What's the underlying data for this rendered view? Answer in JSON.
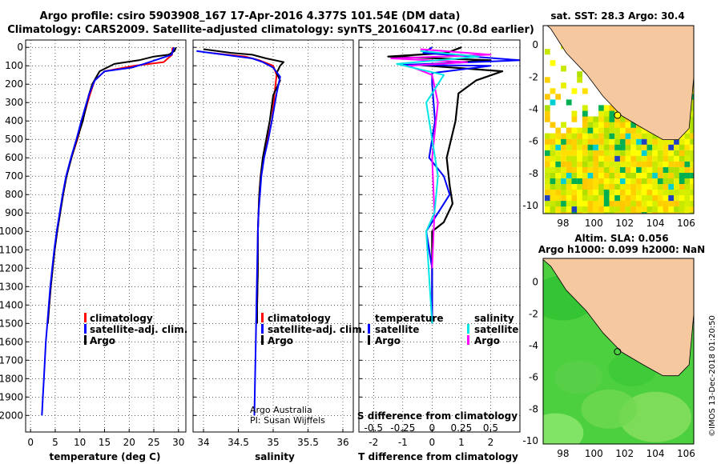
{
  "header": {
    "line1": "Argo profile: csiro 5903908_167 17-Apr-2016 4.377S 101.54E (DM data)",
    "line2": "Climatology: CARS2009. Satellite-adjusted climatology: synTS_20160417.nc (0.8d earlier)"
  },
  "colors": {
    "climatology": "#ff0000",
    "satellite": "#0000ff",
    "argo": "#000000",
    "sal_satellite": "#00e5e5",
    "sal_argo": "#ff00ff",
    "land": "#f5c8a0"
  },
  "chart_data": [
    {
      "type": "line",
      "name": "temperature",
      "xlabel": "temperature (deg C)",
      "ylabel": "",
      "xlim": [
        -1,
        31.5
      ],
      "ylim": [
        2090,
        -40
      ],
      "xticks": [
        "0",
        "5",
        "10",
        "15",
        "20",
        "25",
        "30"
      ],
      "yticks": [
        "0",
        "100",
        "200",
        "300",
        "400",
        "500",
        "600",
        "700",
        "800",
        "900",
        "1000",
        "1100",
        "1200",
        "1300",
        "1400",
        "1500",
        "1600",
        "1700",
        "1800",
        "1900",
        "2000"
      ],
      "legend": [
        "climatology",
        "satellite-adj. clim.",
        "Argo"
      ],
      "series": [
        {
          "name": "climatology",
          "points": [
            [
              28.8,
              0
            ],
            [
              28.7,
              40
            ],
            [
              27,
              80
            ],
            [
              21,
              100
            ],
            [
              15,
              130
            ],
            [
              13,
              180
            ],
            [
              12,
              260
            ],
            [
              10.5,
              400
            ],
            [
              9.5,
              500
            ],
            [
              8.3,
              600
            ],
            [
              7.3,
              700
            ],
            [
              6.6,
              800
            ],
            [
              6,
              900
            ],
            [
              5.4,
              1000
            ],
            [
              4.9,
              1100
            ],
            [
              4.5,
              1200
            ],
            [
              4.1,
              1300
            ],
            [
              3.8,
              1400
            ],
            [
              3.5,
              1500
            ]
          ]
        },
        {
          "name": "satellite-adj. clim.",
          "points": [
            [
              29.1,
              0
            ],
            [
              28.6,
              40
            ],
            [
              23,
              90
            ],
            [
              20.5,
              110
            ],
            [
              15,
              130
            ],
            [
              13,
              180
            ],
            [
              11.8,
              260
            ],
            [
              10.3,
              400
            ],
            [
              9.3,
              500
            ],
            [
              8.2,
              600
            ],
            [
              7.2,
              700
            ],
            [
              6.5,
              800
            ],
            [
              5.9,
              900
            ],
            [
              5.3,
              1000
            ],
            [
              4.8,
              1100
            ],
            [
              4.4,
              1200
            ],
            [
              4.0,
              1300
            ],
            [
              3.7,
              1400
            ],
            [
              3.4,
              1500
            ],
            [
              3.1,
              1600
            ],
            [
              2.9,
              1700
            ],
            [
              2.7,
              1800
            ],
            [
              2.5,
              1900
            ],
            [
              2.3,
              2000
            ]
          ]
        },
        {
          "name": "Argo",
          "points": [
            [
              29.5,
              0
            ],
            [
              29.2,
              20
            ],
            [
              28,
              40
            ],
            [
              25,
              50
            ],
            [
              22,
              70
            ],
            [
              17,
              90
            ],
            [
              14,
              130
            ],
            [
              12.5,
              200
            ],
            [
              11.8,
              260
            ],
            [
              10.6,
              400
            ],
            [
              9.4,
              500
            ],
            [
              8.3,
              600
            ],
            [
              7.3,
              700
            ],
            [
              6.6,
              800
            ],
            [
              6,
              900
            ],
            [
              5.4,
              1000
            ],
            [
              4.9,
              1100
            ],
            [
              4.5,
              1200
            ],
            [
              4.1,
              1300
            ],
            [
              3.8,
              1400
            ],
            [
              3.5,
              1500
            ]
          ]
        }
      ]
    },
    {
      "type": "line",
      "name": "salinity",
      "xlabel": "salinity",
      "ylabel": "",
      "xlim": [
        33.85,
        36.15
      ],
      "ylim": [
        2090,
        -40
      ],
      "xticks": [
        "34",
        "34.5",
        "35",
        "35.5",
        "36"
      ],
      "legend": [
        "climatology",
        "satellite-adj. clim.",
        "Argo"
      ],
      "annotation": [
        "Argo Australia",
        "PI: Susan Wijffels"
      ],
      "series": [
        {
          "name": "climatology",
          "points": [
            [
              34.1,
              30
            ],
            [
              34.6,
              50
            ],
            [
              34.8,
              70
            ],
            [
              35.0,
              100
            ],
            [
              35.05,
              150
            ],
            [
              35.02,
              250
            ],
            [
              34.98,
              400
            ],
            [
              34.92,
              500
            ],
            [
              34.86,
              600
            ],
            [
              34.82,
              700
            ],
            [
              34.8,
              800
            ],
            [
              34.79,
              900
            ],
            [
              34.78,
              1000
            ],
            [
              34.78,
              1200
            ],
            [
              34.77,
              1400
            ],
            [
              34.77,
              1500
            ]
          ]
        },
        {
          "name": "satellite-adj. clim.",
          "points": [
            [
              33.9,
              20
            ],
            [
              34.3,
              40
            ],
            [
              34.7,
              60
            ],
            [
              34.85,
              80
            ],
            [
              35.0,
              110
            ],
            [
              35.1,
              160
            ],
            [
              35.05,
              250
            ],
            [
              34.98,
              400
            ],
            [
              34.93,
              500
            ],
            [
              34.87,
              600
            ],
            [
              34.83,
              700
            ],
            [
              34.81,
              800
            ],
            [
              34.79,
              900
            ],
            [
              34.78,
              1000
            ],
            [
              34.77,
              1200
            ],
            [
              34.76,
              1400
            ],
            [
              34.75,
              1600
            ],
            [
              34.74,
              1800
            ],
            [
              34.73,
              2000
            ]
          ]
        },
        {
          "name": "Argo",
          "points": [
            [
              34.0,
              10
            ],
            [
              34.4,
              30
            ],
            [
              34.7,
              40
            ],
            [
              34.9,
              60
            ],
            [
              35.15,
              80
            ],
            [
              35.1,
              100
            ],
            [
              35.05,
              140
            ],
            [
              35.1,
              180
            ],
            [
              35.0,
              260
            ],
            [
              34.95,
              400
            ],
            [
              34.9,
              500
            ],
            [
              34.85,
              600
            ],
            [
              34.82,
              700
            ],
            [
              34.8,
              800
            ],
            [
              34.79,
              900
            ],
            [
              34.78,
              1000
            ],
            [
              34.78,
              1200
            ],
            [
              34.77,
              1400
            ],
            [
              34.77,
              1500
            ]
          ]
        }
      ]
    },
    {
      "type": "line",
      "name": "difference",
      "xlabel": "T difference from climatology",
      "x2label": "S difference from climatology",
      "xlim": [
        -2.5,
        3
      ],
      "ylim": [
        2090,
        -40
      ],
      "xticks": [
        "-2",
        "-1",
        "0",
        "1",
        "2"
      ],
      "x2ticks": [
        "-0.5",
        "-0.25",
        "0",
        "0.25",
        "0.5"
      ],
      "legend": {
        "temperature": "temperature",
        "salinity": "salinity",
        "satellite": "satellite",
        "argo": "Argo"
      },
      "series": [
        {
          "name": "T satellite",
          "points": [
            [
              0,
              0
            ],
            [
              -0.3,
              30
            ],
            [
              3,
              70
            ],
            [
              -1,
              95
            ],
            [
              2,
              100
            ],
            [
              0,
              140
            ],
            [
              0,
              200
            ],
            [
              0.1,
              400
            ],
            [
              -0.1,
              600
            ],
            [
              0.4,
              700
            ],
            [
              0.6,
              800
            ],
            [
              0.2,
              900
            ],
            [
              -0.2,
              1000
            ],
            [
              0,
              1200
            ],
            [
              0,
              1400
            ],
            [
              0,
              1500
            ]
          ]
        },
        {
          "name": "T Argo",
          "points": [
            [
              1,
              0
            ],
            [
              0.5,
              30
            ],
            [
              -1.5,
              50
            ],
            [
              2,
              70
            ],
            [
              -0.5,
              95
            ],
            [
              2.4,
              130
            ],
            [
              1.5,
              180
            ],
            [
              0.9,
              250
            ],
            [
              0.8,
              400
            ],
            [
              0.5,
              600
            ],
            [
              0.6,
              750
            ],
            [
              0.7,
              850
            ],
            [
              0.4,
              950
            ],
            [
              0,
              1000
            ],
            [
              0,
              1500
            ]
          ]
        },
        {
          "name": "S satellite",
          "points": [
            [
              -0.1,
              20
            ],
            [
              0.4,
              50
            ],
            [
              -0.3,
              90
            ],
            [
              0.1,
              150
            ],
            [
              -0.05,
              300
            ],
            [
              0,
              500
            ],
            [
              0.05,
              700
            ],
            [
              0.02,
              900
            ],
            [
              -0.05,
              1000
            ],
            [
              0,
              1500
            ]
          ]
        },
        {
          "name": "S Argo",
          "points": [
            [
              -0.1,
              10
            ],
            [
              0.5,
              40
            ],
            [
              -0.35,
              60
            ],
            [
              0.3,
              80
            ],
            [
              -0.2,
              100
            ],
            [
              0,
              150
            ],
            [
              0.05,
              300
            ],
            [
              0,
              600
            ],
            [
              0.02,
              900
            ],
            [
              0,
              1200
            ]
          ]
        }
      ]
    }
  ],
  "maps": {
    "sst": {
      "title": "sat. SST: 28.3 Argo: 30.4",
      "xticks": [
        "98",
        "100",
        "102",
        "104",
        "106"
      ],
      "yticks": [
        "0",
        "-2",
        "-4",
        "-6",
        "-8",
        "-10"
      ]
    },
    "sla": {
      "title1": "Altim. SLA: 0.056",
      "title2": "Argo h1000: 0.099 h2000: NaN",
      "xticks": [
        "98",
        "100",
        "102",
        "104",
        "106"
      ],
      "yticks": [
        "0",
        "-2",
        "-4",
        "-6",
        "-8",
        "-10"
      ]
    }
  },
  "credit": "©IMOS 13-Dec-2018 01:20:50"
}
